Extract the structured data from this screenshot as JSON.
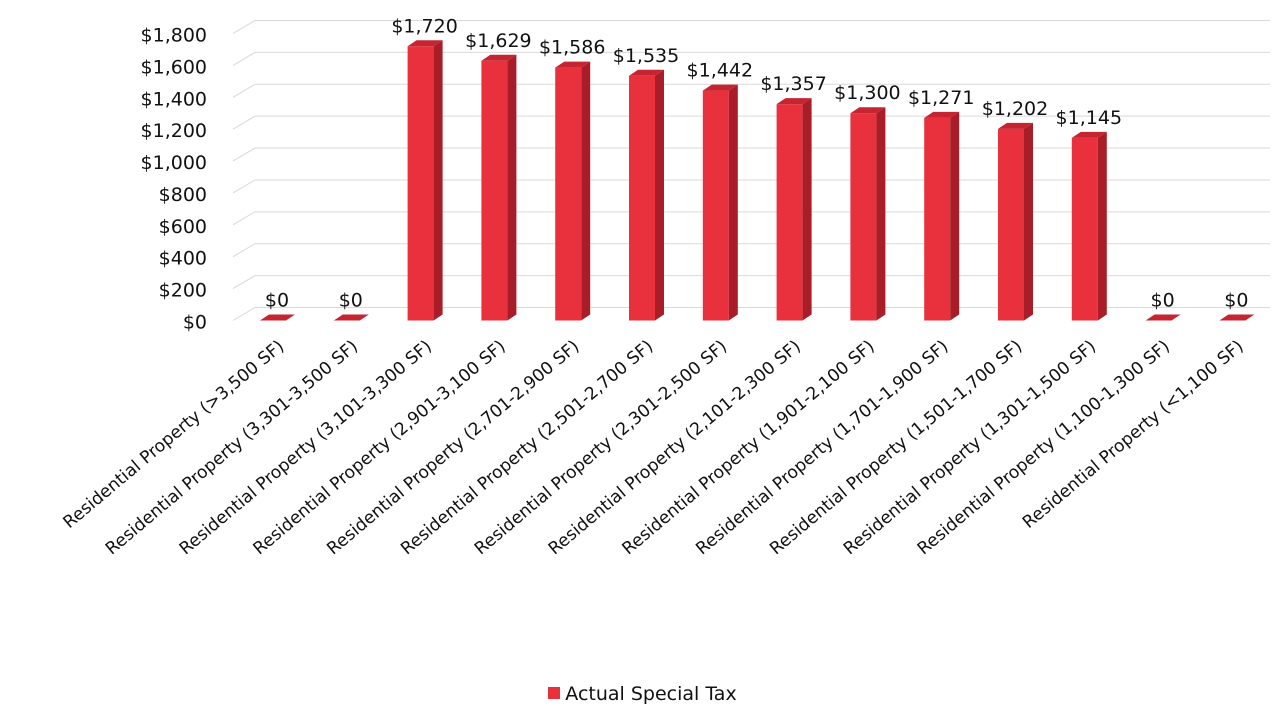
{
  "chart_data": {
    "type": "bar",
    "title": "",
    "xlabel": "",
    "ylabel": "",
    "ylim": [
      0,
      1800
    ],
    "yticks": [
      0,
      200,
      400,
      600,
      800,
      1000,
      1200,
      1400,
      1600,
      1800
    ],
    "ytick_labels": [
      "$0",
      "$200",
      "$400",
      "$600",
      "$800",
      "$1,000",
      "$1,200",
      "$1,400",
      "$1,600",
      "$1,800"
    ],
    "grid": true,
    "style": "3d-columns",
    "legend_position": "bottom",
    "categories": [
      "Residential Property (>3,500 SF)",
      "Residential Property (3,301-3,500 SF)",
      "Residential Property (3,101-3,300 SF)",
      "Residential Property (2,901-3,100 SF)",
      "Residential Property (2,701-2,900 SF)",
      "Residential Property (2,501-2,700 SF)",
      "Residential Property (2,301-2,500 SF)",
      "Residential Property (2,101-2,300 SF)",
      "Residential Property (1,901-2,100 SF)",
      "Residential Property (1,701-1,900 SF)",
      "Residential Property (1,501-1,700 SF)",
      "Residential Property (1,301-1,500 SF)",
      "Residential Property (1,100-1,300 SF)",
      "Residential Property (<1,100 SF)"
    ],
    "series": [
      {
        "name": "Actual Special Tax",
        "color": "#e8313d",
        "values": [
          0,
          0,
          1720,
          1629,
          1586,
          1535,
          1442,
          1357,
          1300,
          1271,
          1202,
          1145,
          0,
          0
        ],
        "data_labels": [
          "$0",
          "$0",
          "$1,720",
          "$1,629",
          "$1,586",
          "$1,535",
          "$1,442",
          "$1,357",
          "$1,300",
          "$1,271",
          "$1,202",
          "$1,145",
          "$0",
          "$0"
        ]
      }
    ]
  },
  "legend": {
    "label": "Actual Special Tax",
    "color": "#e8313d"
  }
}
